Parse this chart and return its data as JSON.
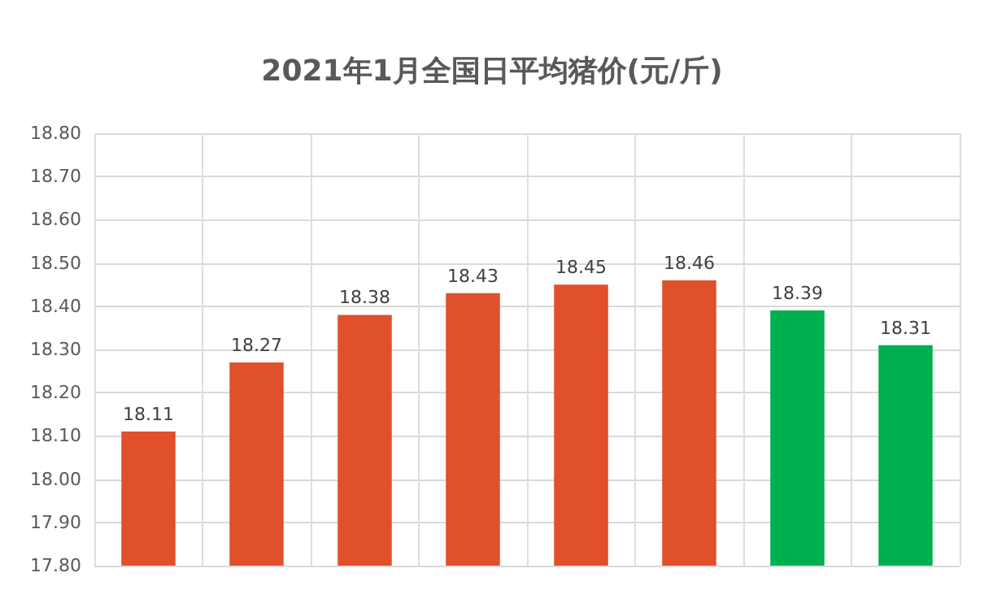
{
  "chart_data": {
    "type": "bar",
    "title": "2021年1月全国日平均猪价(元/斤)",
    "categories": [
      null,
      null,
      null,
      null,
      null,
      null,
      null,
      null
    ],
    "values": [
      18.11,
      18.27,
      18.38,
      18.43,
      18.45,
      18.46,
      18.39,
      18.31
    ],
    "colors": [
      "#e0502a",
      "#e0502a",
      "#e0502a",
      "#e0502a",
      "#e0502a",
      "#e0502a",
      "#00b050",
      "#00b050"
    ],
    "ylim": [
      17.8,
      18.8
    ],
    "yticks": [
      {
        "value": 17.8,
        "label": "17.80"
      },
      {
        "value": 17.9,
        "label": "17.90"
      },
      {
        "value": 18.0,
        "label": "18.00"
      },
      {
        "value": 18.1,
        "label": "18.10"
      },
      {
        "value": 18.2,
        "label": "18.20"
      },
      {
        "value": 18.3,
        "label": "18.30"
      },
      {
        "value": 18.4,
        "label": "18.40"
      },
      {
        "value": 18.5,
        "label": "18.50"
      },
      {
        "value": 18.6,
        "label": "18.60"
      },
      {
        "value": 18.7,
        "label": "18.70"
      },
      {
        "value": 18.8,
        "label": "18.80"
      }
    ],
    "grid": true,
    "data_labels": true
  }
}
